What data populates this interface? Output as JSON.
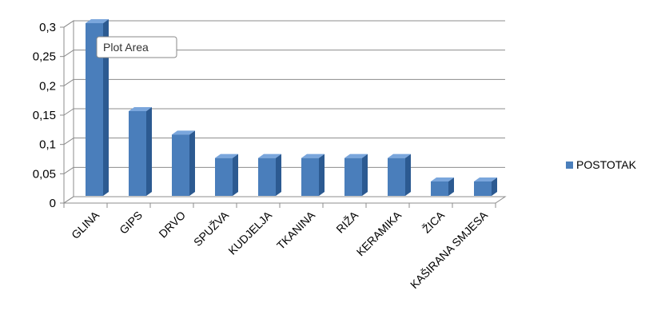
{
  "chart_data": {
    "type": "bar",
    "style": "3d-column",
    "categories": [
      "GLINA",
      "GIPS",
      "DRVO",
      "SPUŽVA",
      "KUDJELJA",
      "TKANINA",
      "RIŽA",
      "KERAMIKA",
      "ŽICA",
      "KAŠIRANA SMJESA"
    ],
    "series": [
      {
        "name": "POSTOTAK",
        "values": [
          0.3,
          0.15,
          0.11,
          0.07,
          0.07,
          0.07,
          0.07,
          0.07,
          0.03,
          0.03
        ]
      }
    ],
    "y_ticks": [
      "0",
      "0,05",
      "0,1",
      "0,15",
      "0,2",
      "0,25",
      "0,3"
    ],
    "ylim": [
      0,
      0.3
    ],
    "grid": true,
    "legend_position": "right",
    "tooltip": "Plot Area",
    "colors": {
      "bar_front": "#4a7ebb",
      "bar_side": "#2c5a91",
      "bar_top": "#7aa6dc",
      "grid": "#8c8c8c",
      "wall": "#ffffff"
    }
  }
}
